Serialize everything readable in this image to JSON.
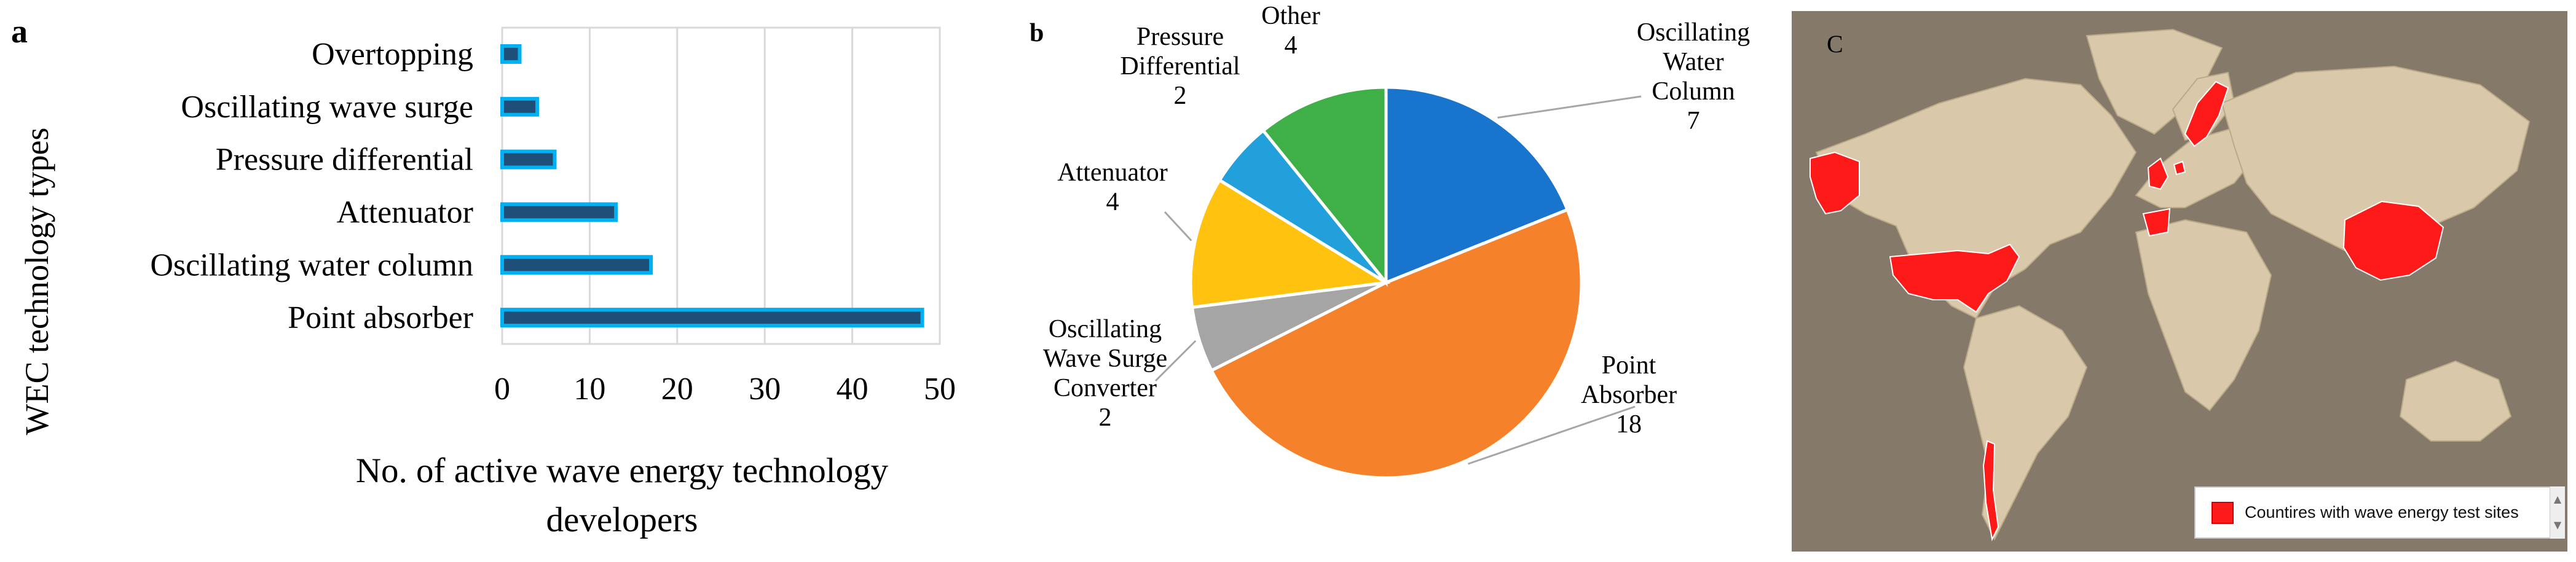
{
  "panels": {
    "a": {
      "letter": "a"
    },
    "b": {
      "letter": "b"
    },
    "c": {
      "letter": "C"
    }
  },
  "chart_data": [
    {
      "type": "bar",
      "orientation": "horizontal",
      "categories": [
        "Point absorber",
        "Oscillating water column",
        "Attenuator",
        "Pressure differential",
        "Oscillating wave surge",
        "Overtopping"
      ],
      "values": [
        48,
        17,
        13,
        6,
        4,
        2
      ],
      "xlabel_lines": [
        "No. of active wave energy technology",
        "developers"
      ],
      "ylabel": "WEC technology types",
      "xlim": [
        0,
        50
      ],
      "xticks": [
        0,
        10,
        20,
        30,
        40,
        50
      ],
      "grid": "vertical",
      "colors": {
        "bar_fill": "#1f4e79",
        "bar_edge": "#00b0f0"
      }
    },
    {
      "type": "pie",
      "slices": [
        {
          "label_lines": [
            "Oscillating",
            "Water",
            "Column"
          ],
          "value": 7,
          "value_label": "7",
          "color": "#1874cd"
        },
        {
          "label_lines": [
            "Point",
            "Absorber"
          ],
          "value": 18,
          "value_label": "18",
          "color": "#f5812a"
        },
        {
          "label_lines": [
            "Oscillating",
            "Wave Surge",
            "Converter"
          ],
          "value": 2,
          "value_label": "2",
          "color": "#a5a5a5"
        },
        {
          "label_lines": [
            "Attenuator"
          ],
          "value": 4,
          "value_label": "4",
          "color": "#ffc20e"
        },
        {
          "label_lines": [
            "Pressure",
            "Differential"
          ],
          "value": 2,
          "value_label": "2",
          "color": "#22a0dc"
        },
        {
          "label_lines": [
            "Other"
          ],
          "value": 4,
          "value_label": "4",
          "color": "#3fb047"
        }
      ]
    }
  ],
  "map": {
    "legend_text": "Countires with wave energy test sites",
    "colors": {
      "ocean": "#85796a",
      "land": "#d9c8a9",
      "highlight": "#ff1a1a"
    }
  }
}
